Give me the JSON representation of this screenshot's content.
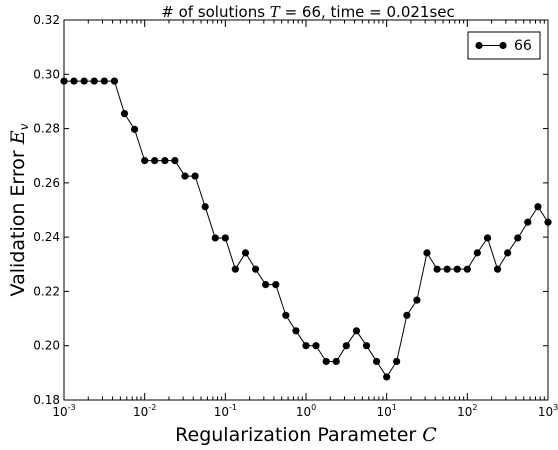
{
  "chart_data": {
    "type": "line",
    "title_prefix": "# of solutions ",
    "title_var": "T",
    "title_suffix": " = 66, time = 0.021sec",
    "xlabel": "Regularization Parameter ",
    "xlabel_var": "C",
    "ylabel": "Validation Error ",
    "ylabel_var": "E",
    "ylabel_sub": "v",
    "xscale": "log",
    "xlim": [
      0.001,
      1000
    ],
    "ylim": [
      0.18,
      0.32
    ],
    "xtick_base": "10",
    "xtick_exponents": [
      "-3",
      "-2",
      "-1",
      "0",
      "1",
      "2",
      "3"
    ],
    "yticks": [
      "0.18",
      "0.20",
      "0.22",
      "0.24",
      "0.26",
      "0.28",
      "0.30",
      "0.32"
    ],
    "legend_position": "top-right",
    "series": [
      {
        "name": "66",
        "color": "#000000",
        "x": [
          0.001,
          0.00133,
          0.00178,
          0.00237,
          0.00316,
          0.00422,
          0.00562,
          0.0075,
          0.01,
          0.0133,
          0.0178,
          0.0237,
          0.0316,
          0.0422,
          0.0562,
          0.075,
          0.1,
          0.133,
          0.178,
          0.237,
          0.316,
          0.422,
          0.562,
          0.75,
          1.0,
          1.33,
          1.78,
          2.37,
          3.16,
          4.22,
          5.62,
          7.5,
          10.0,
          13.3,
          17.8,
          23.7,
          31.6,
          42.2,
          56.2,
          75.0,
          100.0,
          133.0,
          178.0,
          237.0,
          316.0,
          422.0,
          562.0,
          750.0,
          1000.0
        ],
        "y": [
          0.2975,
          0.2975,
          0.2975,
          0.2975,
          0.2975,
          0.2975,
          0.2855,
          0.2797,
          0.2682,
          0.2682,
          0.2682,
          0.2682,
          0.2625,
          0.2625,
          0.2512,
          0.2397,
          0.2397,
          0.2282,
          0.2342,
          0.2282,
          0.2225,
          0.2225,
          0.2112,
          0.2055,
          0.2,
          0.2,
          0.1942,
          0.1942,
          0.2,
          0.2055,
          0.2,
          0.1942,
          0.1885,
          0.1942,
          0.2112,
          0.2168,
          0.2342,
          0.2282,
          0.2282,
          0.2282,
          0.2282,
          0.2342,
          0.2397,
          0.2282,
          0.2342,
          0.2397,
          0.2455,
          0.2512,
          0.2455
        ]
      }
    ]
  }
}
